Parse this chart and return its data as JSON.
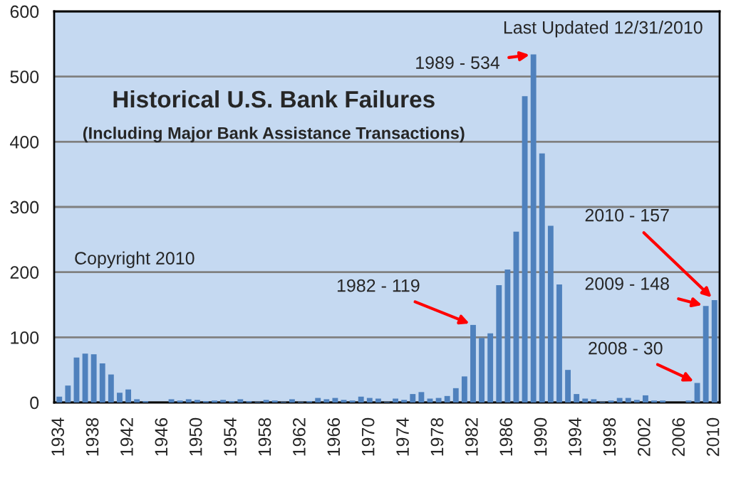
{
  "chart_data": {
    "type": "bar",
    "title": "Historical U.S. Bank Failures",
    "subtitle": "(Including Major Bank Assistance Transactions)",
    "x": [
      1934,
      1935,
      1936,
      1937,
      1938,
      1939,
      1940,
      1941,
      1942,
      1943,
      1944,
      1945,
      1946,
      1947,
      1948,
      1949,
      1950,
      1951,
      1952,
      1953,
      1954,
      1955,
      1956,
      1957,
      1958,
      1959,
      1960,
      1961,
      1962,
      1963,
      1964,
      1965,
      1966,
      1967,
      1968,
      1969,
      1970,
      1971,
      1972,
      1973,
      1974,
      1975,
      1976,
      1977,
      1978,
      1979,
      1980,
      1981,
      1982,
      1983,
      1984,
      1985,
      1986,
      1987,
      1988,
      1989,
      1990,
      1991,
      1992,
      1993,
      1994,
      1995,
      1996,
      1997,
      1998,
      1999,
      2000,
      2001,
      2002,
      2003,
      2004,
      2005,
      2006,
      2007,
      2008,
      2009,
      2010
    ],
    "values": [
      9,
      26,
      69,
      75,
      74,
      60,
      43,
      15,
      20,
      5,
      2,
      0,
      0,
      5,
      3,
      5,
      4,
      2,
      3,
      4,
      2,
      5,
      2,
      1,
      4,
      3,
      1,
      5,
      1,
      2,
      7,
      5,
      7,
      4,
      3,
      9,
      7,
      6,
      1,
      6,
      4,
      13,
      16,
      6,
      7,
      10,
      22,
      40,
      119,
      99,
      106,
      180,
      204,
      262,
      470,
      534,
      382,
      271,
      181,
      50,
      13,
      6,
      5,
      1,
      3,
      7,
      7,
      4,
      11,
      3,
      3,
      0,
      0,
      3,
      30,
      148,
      157
    ],
    "color": "#4f81bd",
    "xlim": [
      1933.4,
      2010.6
    ],
    "xticks": [
      1934,
      1938,
      1942,
      1946,
      1950,
      1954,
      1958,
      1962,
      1966,
      1970,
      1974,
      1978,
      1982,
      1986,
      1990,
      1994,
      1998,
      2002,
      2006,
      2010
    ],
    "ylim": [
      0,
      600
    ],
    "yticks": [
      0,
      100,
      200,
      300,
      400,
      500,
      600
    ],
    "grid": "y",
    "legend": false,
    "annotations": [
      "Last Updated 12/31/2010",
      "Copyright 2010",
      {
        "text": "1989 - 534",
        "x": 1989,
        "y": 534
      },
      {
        "text": "1982 - 119",
        "x": 1982,
        "y": 119
      },
      {
        "text": "2010 - 157",
        "x": 2010,
        "y": 157
      },
      {
        "text": "2009 - 148",
        "x": 2009,
        "y": 148
      },
      {
        "text": "2008 - 30",
        "x": 2008,
        "y": 30
      }
    ]
  }
}
